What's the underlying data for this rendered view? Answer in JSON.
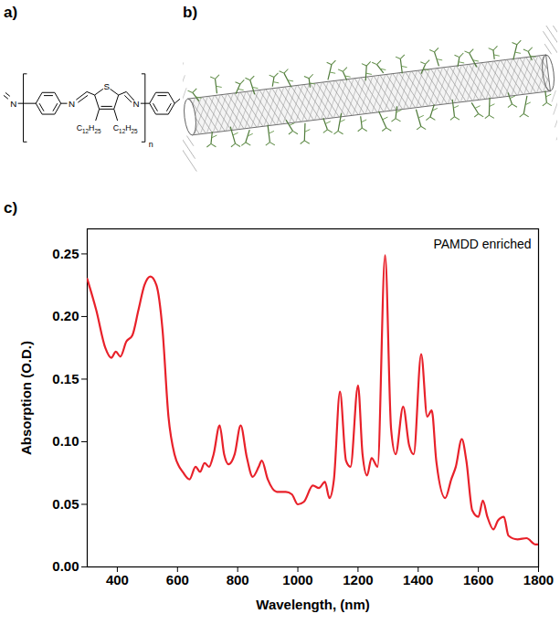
{
  "figure": {
    "panel_labels": [
      "a)",
      "b)",
      "c)"
    ],
    "structure": {
      "atoms": [
        "N",
        "N",
        "S",
        "N"
      ],
      "substituents": [
        "C12H25",
        "C12H25"
      ],
      "repeat": "n"
    }
  },
  "chart_data": {
    "type": "line",
    "annotation": "PAMDD enriched",
    "x_label": "Wavelength, (nm)",
    "y_label": "Absorption (O.D.)",
    "color": "#e8212a",
    "xlim": [
      300,
      1800
    ],
    "xticks": [
      400,
      600,
      800,
      1000,
      1200,
      1400,
      1600,
      1800
    ],
    "ylim": [
      0,
      0.27
    ],
    "yticks": [
      {
        "value": 0,
        "label": "0.00"
      },
      {
        "value": 0.05,
        "label": "0.05"
      },
      {
        "value": 0.1,
        "label": "0.10"
      },
      {
        "value": 0.15,
        "label": "0.15"
      },
      {
        "value": 0.2,
        "label": "0.20"
      },
      {
        "value": 0.25,
        "label": "0.25"
      }
    ],
    "x": [
      300,
      330,
      360,
      380,
      395,
      410,
      430,
      450,
      470,
      490,
      510,
      530,
      550,
      570,
      590,
      620,
      640,
      660,
      675,
      690,
      705,
      720,
      740,
      755,
      770,
      790,
      810,
      830,
      850,
      870,
      880,
      900,
      930,
      960,
      980,
      1000,
      1020,
      1050,
      1070,
      1090,
      1105,
      1120,
      1140,
      1160,
      1175,
      1200,
      1215,
      1230,
      1245,
      1265,
      1290,
      1310,
      1325,
      1350,
      1370,
      1385,
      1410,
      1430,
      1445,
      1460,
      1490,
      1510,
      1525,
      1545,
      1560,
      1580,
      1600,
      1615,
      1630,
      1650,
      1665,
      1685,
      1700,
      1730,
      1760,
      1790,
      1800
    ],
    "values": [
      0.23,
      0.205,
      0.175,
      0.167,
      0.172,
      0.168,
      0.18,
      0.185,
      0.205,
      0.225,
      0.232,
      0.225,
      0.19,
      0.12,
      0.09,
      0.075,
      0.07,
      0.08,
      0.076,
      0.083,
      0.08,
      0.09,
      0.113,
      0.09,
      0.082,
      0.09,
      0.113,
      0.088,
      0.072,
      0.08,
      0.085,
      0.07,
      0.06,
      0.06,
      0.058,
      0.05,
      0.052,
      0.065,
      0.063,
      0.068,
      0.055,
      0.07,
      0.14,
      0.085,
      0.08,
      0.145,
      0.09,
      0.073,
      0.087,
      0.08,
      0.249,
      0.11,
      0.09,
      0.128,
      0.097,
      0.09,
      0.17,
      0.12,
      0.125,
      0.085,
      0.055,
      0.07,
      0.08,
      0.102,
      0.085,
      0.045,
      0.04,
      0.053,
      0.04,
      0.03,
      0.037,
      0.04,
      0.025,
      0.022,
      0.023,
      0.018,
      0.018
    ]
  }
}
